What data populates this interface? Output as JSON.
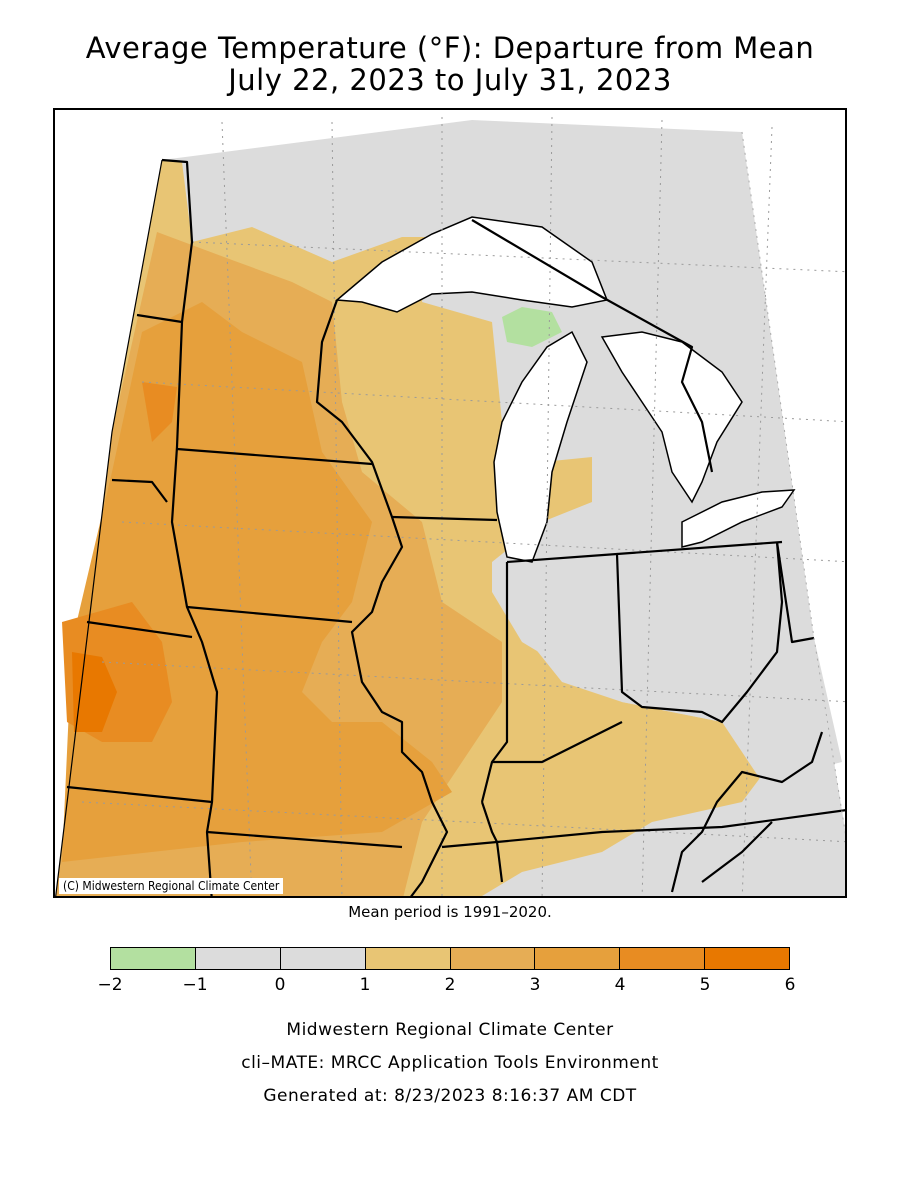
{
  "title": {
    "line1": "Average Temperature (°F): Departure from Mean",
    "line2": "July 22, 2023 to July 31, 2023"
  },
  "credit": "(C) Midwestern Regional Climate Center",
  "mean_period": "Mean period is 1991–2020.",
  "legend": {
    "ticks": [
      "−2",
      "−1",
      "0",
      "1",
      "2",
      "3",
      "4",
      "5",
      "6"
    ],
    "bins": [
      {
        "range": [
          -2,
          -1
        ],
        "color": "#b3e0a0"
      },
      {
        "range": [
          -1,
          0
        ],
        "color": "#dcdcdc"
      },
      {
        "range": [
          0,
          1
        ],
        "color": "#dcdcdc"
      },
      {
        "range": [
          1,
          2
        ],
        "color": "#e8c574"
      },
      {
        "range": [
          2,
          3
        ],
        "color": "#e6ad55"
      },
      {
        "range": [
          3,
          4
        ],
        "color": "#e6a03c"
      },
      {
        "range": [
          4,
          5
        ],
        "color": "#e88c22"
      },
      {
        "range": [
          5,
          6
        ],
        "color": "#e87800"
      }
    ]
  },
  "colors": {
    "lake": "#ffffff",
    "border": "#000000",
    "grid": "#9a9a9a"
  },
  "footer": {
    "line1": "Midwestern Regional Climate Center",
    "line2": "cli–MATE: MRCC Application Tools Environment",
    "line3": "Generated at: 8/23/2023 8:16:37 AM CDT"
  }
}
